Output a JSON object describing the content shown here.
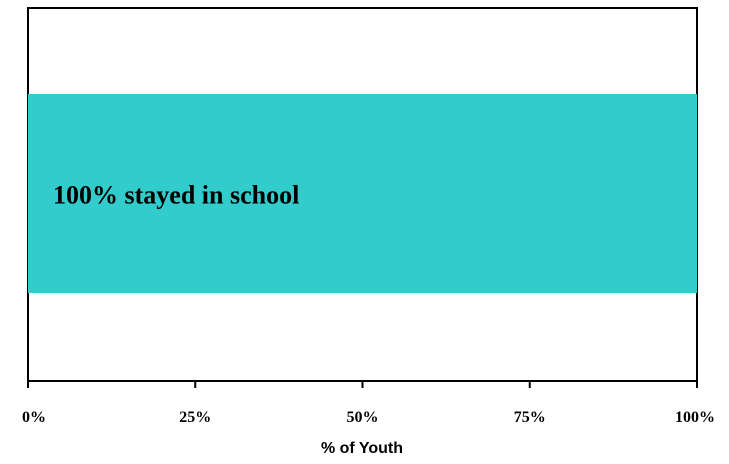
{
  "chart_data": {
    "type": "bar",
    "orientation": "horizontal",
    "categories": [
      ""
    ],
    "series": [
      {
        "values": [
          100
        ],
        "color": "#33CCCC"
      }
    ],
    "data_labels": [
      "100% stayed in school"
    ],
    "xlabel": "% of Youth",
    "ylabel": "",
    "xlim": [
      0,
      100
    ],
    "xticks": [
      0,
      25,
      50,
      75,
      100
    ],
    "xtick_labels": [
      "0%",
      "25%",
      "50%",
      "75%",
      "100%"
    ],
    "grid": false,
    "legend": "none"
  }
}
